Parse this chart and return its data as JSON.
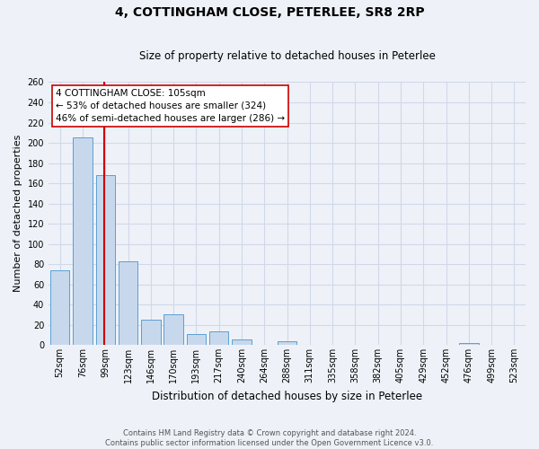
{
  "title_line1": "4, COTTINGHAM CLOSE, PETERLEE, SR8 2RP",
  "title_line2": "Size of property relative to detached houses in Peterlee",
  "xlabel": "Distribution of detached houses by size in Peterlee",
  "ylabel": "Number of detached properties",
  "footer_line1": "Contains HM Land Registry data © Crown copyright and database right 2024.",
  "footer_line2": "Contains public sector information licensed under the Open Government Licence v3.0.",
  "categories": [
    "52sqm",
    "76sqm",
    "99sqm",
    "123sqm",
    "146sqm",
    "170sqm",
    "193sqm",
    "217sqm",
    "240sqm",
    "264sqm",
    "288sqm",
    "311sqm",
    "335sqm",
    "358sqm",
    "382sqm",
    "405sqm",
    "429sqm",
    "452sqm",
    "476sqm",
    "499sqm",
    "523sqm"
  ],
  "values": [
    74,
    205,
    168,
    83,
    25,
    30,
    11,
    13,
    5,
    0,
    4,
    0,
    0,
    0,
    0,
    0,
    0,
    0,
    2,
    0,
    0
  ],
  "bar_color": "#c8d8ec",
  "bar_edge_color": "#5a9fd4",
  "grid_color": "#d0d8e8",
  "background_color": "#eef2f8",
  "vline_color": "#cc0000",
  "annotation_line1": "4 COTTINGHAM CLOSE: 105sqm",
  "annotation_line2": "← 53% of detached houses are smaller (324)",
  "annotation_line3": "46% of semi-detached houses are larger (286) →",
  "annotation_box_color": "#ffffff",
  "annotation_box_edge": "#cc0000",
  "ylim": [
    0,
    260
  ],
  "yticks": [
    0,
    20,
    40,
    60,
    80,
    100,
    120,
    140,
    160,
    180,
    200,
    220,
    240,
    260
  ],
  "title1_fontsize": 10,
  "title2_fontsize": 8.5,
  "ylabel_fontsize": 8,
  "xlabel_fontsize": 8.5,
  "tick_fontsize": 7,
  "annot_fontsize": 7.5,
  "footer_fontsize": 6
}
